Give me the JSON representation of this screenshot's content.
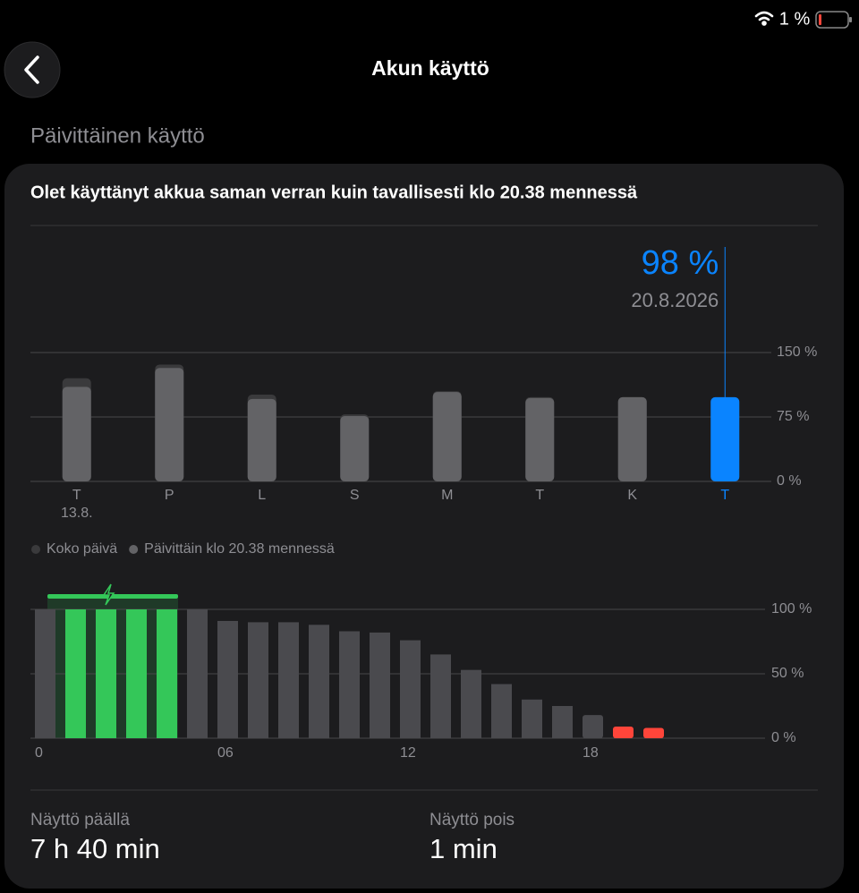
{
  "status_bar": {
    "battery": "1 %"
  },
  "header": {
    "title": "Akun käyttö"
  },
  "section_title": "Päivittäinen käyttö",
  "card": {
    "summary": "Olet käyttänyt akkua saman verran kuin tavallisesti klo 20.38 mennessä",
    "screen_on": {
      "label": "Näyttö päällä",
      "value": "7 h 40 min"
    },
    "screen_off": {
      "label": "Näyttö pois",
      "value": "1 min"
    }
  },
  "chart_data": [
    {
      "type": "bar",
      "categories": [
        "T",
        "P",
        "L",
        "S",
        "M",
        "T",
        "K",
        "T"
      ],
      "category_sublabels": [
        "13.8.",
        null,
        null,
        null,
        null,
        null,
        null,
        null
      ],
      "series": [
        {
          "name": "Koko päivä",
          "color": "#3a3a3c",
          "values": [
            120,
            136,
            101,
            78,
            105,
            98,
            98,
            null
          ]
        },
        {
          "name": "Päivittäin klo 20.38 mennessä",
          "color": "#636366",
          "values": [
            110,
            132,
            96,
            76,
            104,
            97,
            98,
            98
          ],
          "value_labels": [
            null,
            null,
            null,
            null,
            null,
            null,
            null,
            "98 %"
          ]
        }
      ],
      "highlight": {
        "index": 7,
        "color": "#0a84ff",
        "date": "20.8.2026"
      },
      "ylim": [
        0,
        150
      ],
      "yticks": [
        {
          "value": 0,
          "label": "0 %"
        },
        {
          "value": 75,
          "label": "75 %"
        },
        {
          "value": 150,
          "label": "150 %"
        }
      ],
      "grid": true
    },
    {
      "type": "bar",
      "x": [
        0,
        1,
        2,
        3,
        4,
        5,
        6,
        7,
        8,
        9,
        10,
        11,
        12,
        13,
        14,
        15,
        16,
        17,
        18,
        19,
        20,
        21,
        22,
        23
      ],
      "values": [
        100,
        100,
        100,
        100,
        100,
        100,
        91,
        90,
        90,
        88,
        83,
        82,
        76,
        65,
        53,
        42,
        30,
        25,
        18,
        9,
        8,
        null,
        null,
        null
      ],
      "colors": [
        "#4a4a4e",
        "#34c759",
        "#34c759",
        "#34c759",
        "#34c759",
        "#4a4a4e",
        "#4a4a4e",
        "#4a4a4e",
        "#4a4a4e",
        "#4a4a4e",
        "#4a4a4e",
        "#4a4a4e",
        "#4a4a4e",
        "#4a4a4e",
        "#4a4a4e",
        "#4a4a4e",
        "#4a4a4e",
        "#4a4a4e",
        "#4a4a4e",
        "#ff453a",
        "#ff453a",
        "#4a4a4e",
        "#4a4a4e",
        "#4a4a4e"
      ],
      "charging_color": "#34c759",
      "xlim": [
        0,
        24
      ],
      "xticks": [
        0,
        {
          "value": 6,
          "label": "06"
        },
        12,
        18
      ],
      "ylim": [
        0,
        100
      ],
      "yticks": [
        {
          "value": 0,
          "label": "0 %"
        },
        {
          "value": 50,
          "label": "50 %"
        },
        {
          "value": 100,
          "label": "100 %"
        }
      ],
      "grid": true
    }
  ]
}
